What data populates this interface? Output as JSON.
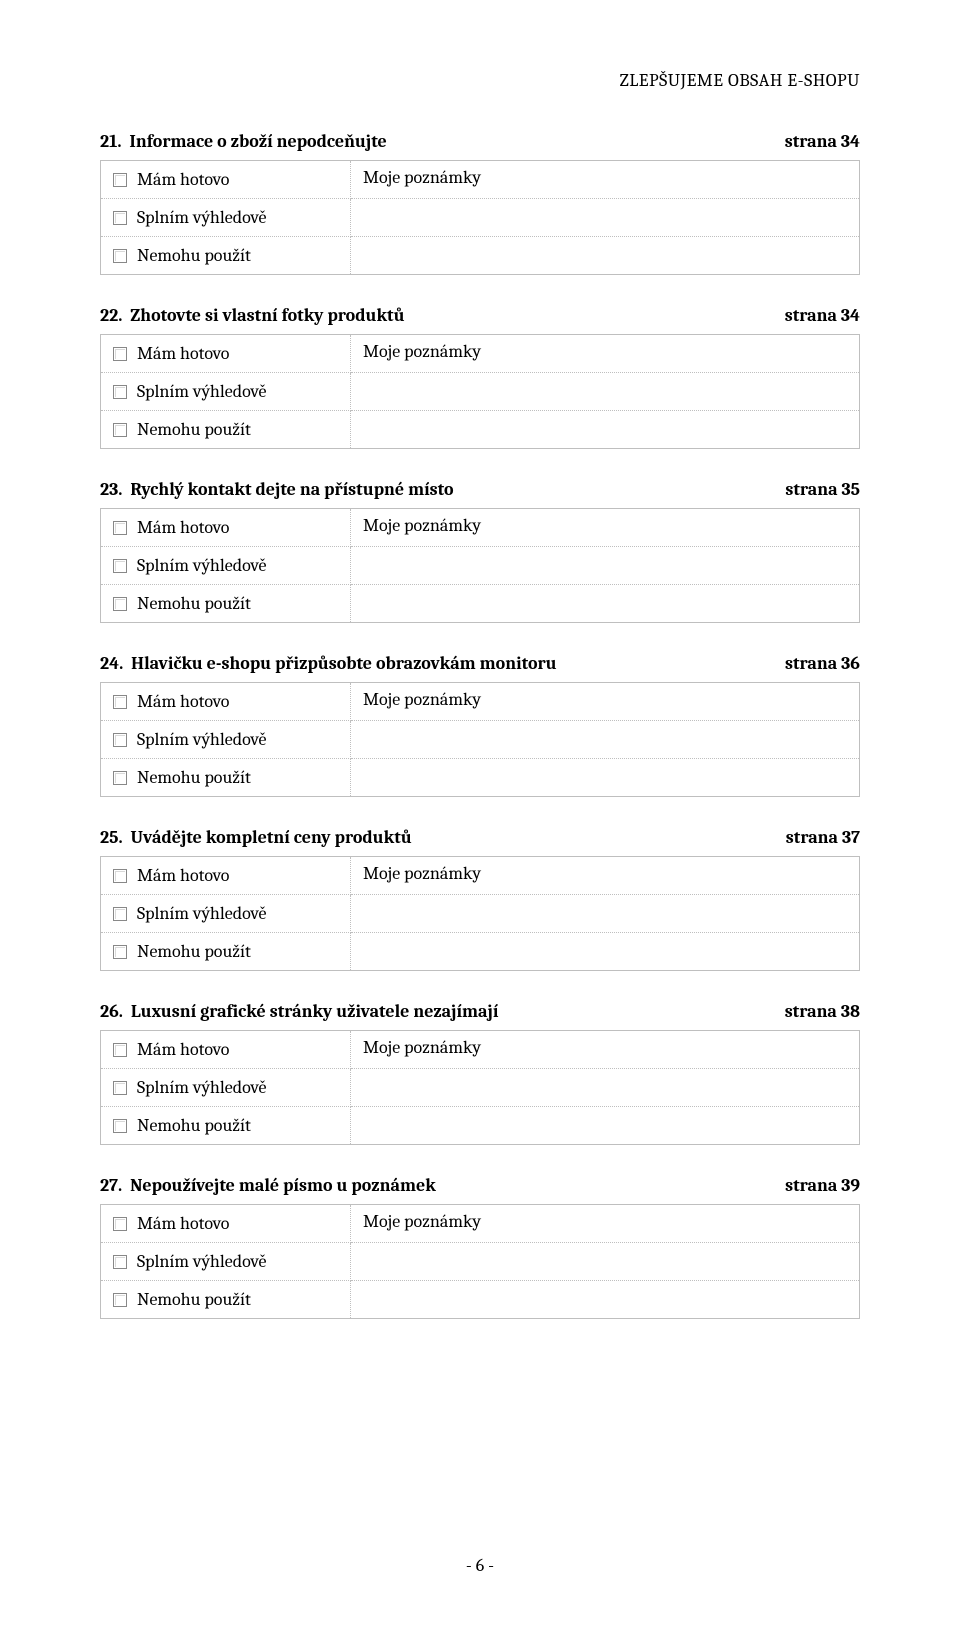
{
  "header": "ZLEPŠUJEME OBSAH E-SHOPU",
  "notes_label": "Moje poznámky",
  "options": {
    "a": "Mám hotovo",
    "b": "Splním výhledově",
    "c": "Nemohu použít"
  },
  "sections": [
    {
      "num": "21.",
      "title": "Informace o zboží nepodceňujte",
      "page": "strana 34"
    },
    {
      "num": "22.",
      "title": "Zhotovte si vlastní fotky produktů",
      "page": "strana 34"
    },
    {
      "num": "23.",
      "title": "Rychlý kontakt dejte na přístupné místo",
      "page": "strana 35"
    },
    {
      "num": "24.",
      "title": "Hlavičku e-shopu přizpůsobte obrazovkám monitoru",
      "page": "strana 36"
    },
    {
      "num": "25.",
      "title": "Uvádějte kompletní ceny produktů",
      "page": "strana 37"
    },
    {
      "num": "26.",
      "title": "Luxusní grafické stránky uživatele nezajímají",
      "page": "strana 38"
    },
    {
      "num": "27.",
      "title": "Nepoužívejte malé písmo u poznámek",
      "page": "strana 39"
    }
  ],
  "footer": "- 6 -",
  "colors": {
    "text": "#000000",
    "border": "#bfbfbf",
    "background": "#ffffff"
  }
}
